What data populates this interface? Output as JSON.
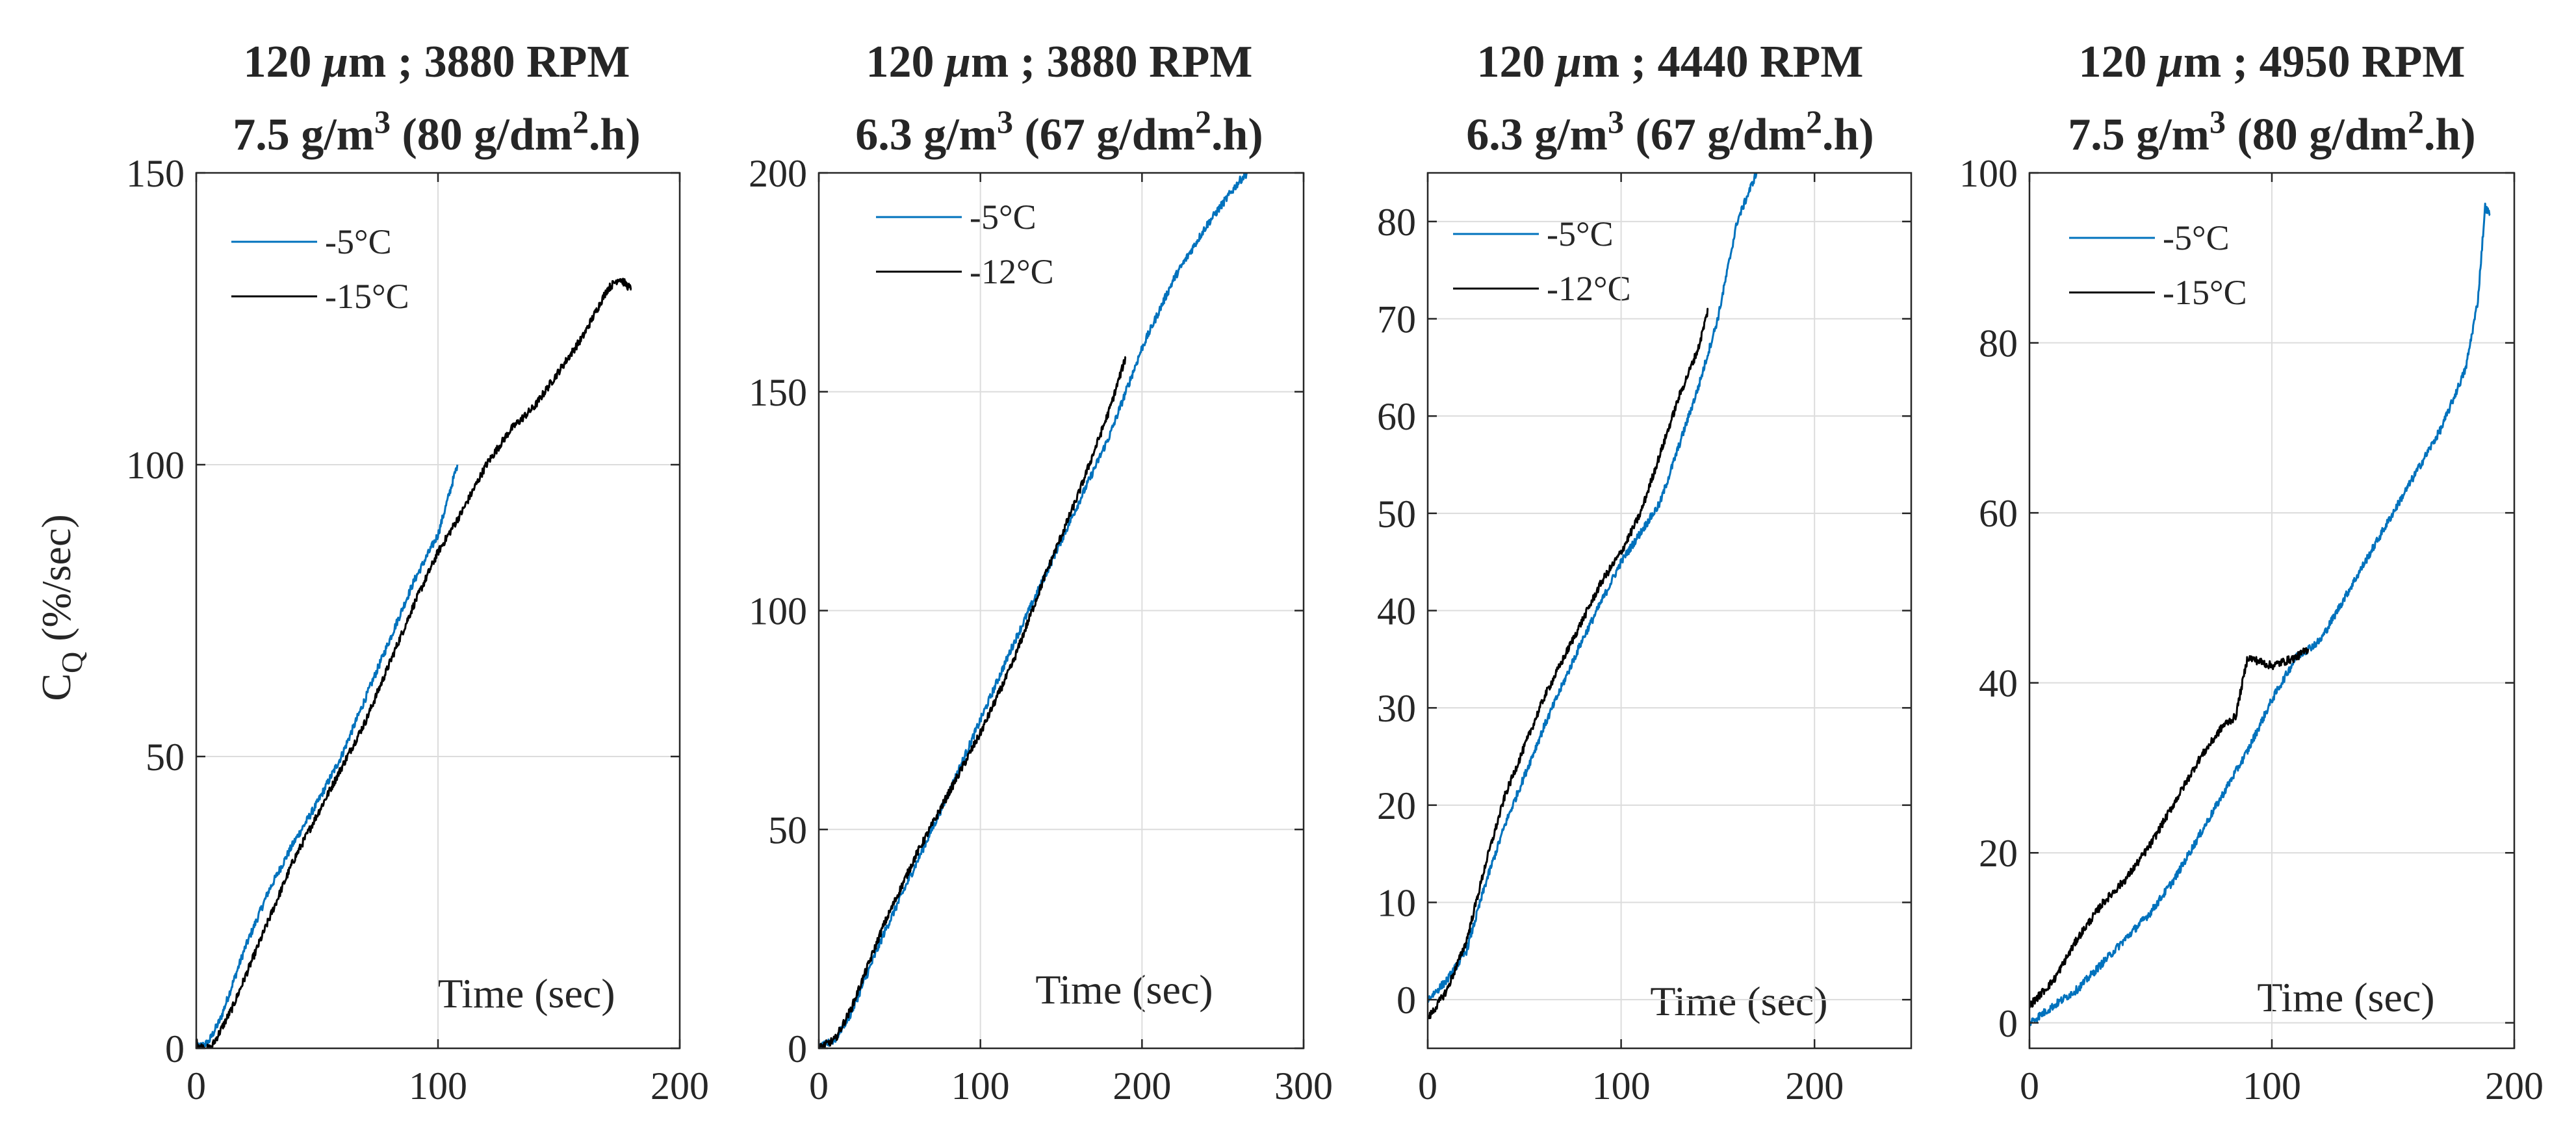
{
  "figure": {
    "ylabel": "C",
    "ylabel_sub": "Q",
    "ylabel_unit": " (%/sec)"
  },
  "colors": {
    "blue": "#0072BD",
    "black": "#000000",
    "grid": "#dcdcdc",
    "axis": "#262626"
  },
  "chart_data": [
    {
      "type": "line",
      "title_line1": {
        "pre": "120 ",
        "mu": "μ",
        "post": "m ; 3880 RPM"
      },
      "title_line2": {
        "a": "7.5 g/m",
        "a_sup": "3",
        "b": " (80 g/dm",
        "b_sup": "2",
        "c": ".h)"
      },
      "xlabel": "Time (sec)",
      "xlim": [
        0,
        200
      ],
      "ylim": [
        0,
        150
      ],
      "xticks": [
        0,
        100,
        200
      ],
      "yticks": [
        0,
        50,
        100,
        150
      ],
      "xtick_labels": [
        "0",
        "100",
        "200"
      ],
      "ytick_labels": [
        "0",
        "50",
        "100",
        "150"
      ],
      "legend": [
        "-5°C",
        "-15°C"
      ],
      "series": [
        {
          "name": "-5°C",
          "color": "#0072BD",
          "x": [
            0,
            5,
            10,
            20,
            30,
            40,
            50,
            60,
            70,
            80,
            90,
            100,
            108
          ],
          "y": [
            0,
            1,
            5,
            17,
            27,
            35,
            42,
            50,
            60,
            70,
            80,
            88,
            100
          ]
        },
        {
          "name": "-15°C",
          "color": "#000000",
          "x": [
            0,
            3,
            6,
            10,
            15,
            20,
            30,
            40,
            50,
            60,
            70,
            80,
            90,
            100,
            110,
            120,
            130,
            140,
            150,
            160,
            170,
            175,
            180
          ],
          "y": [
            1,
            0,
            0,
            3,
            7,
            12,
            22,
            32,
            40,
            48,
            56,
            66,
            76,
            85,
            92,
            100,
            106,
            110,
            116,
            122,
            130,
            132,
            130
          ]
        }
      ]
    },
    {
      "type": "line",
      "title_line1": {
        "pre": "120 ",
        "mu": "μ",
        "post": "m ; 3880 RPM"
      },
      "title_line2": {
        "a": "6.3 g/m",
        "a_sup": "3",
        "b": " (67 g/dm",
        "b_sup": "2",
        "c": ".h)"
      },
      "xlabel": "Time (sec)",
      "xlim": [
        0,
        300
      ],
      "ylim": [
        0,
        200
      ],
      "xticks": [
        0,
        100,
        200,
        300
      ],
      "yticks": [
        0,
        50,
        100,
        150,
        200
      ],
      "xtick_labels": [
        "0",
        "100",
        "200",
        "300"
      ],
      "ytick_labels": [
        "0",
        "50",
        "100",
        "150",
        "200"
      ],
      "legend": [
        "-5°C",
        "-12°C"
      ],
      "series": [
        {
          "name": "-5°C",
          "color": "#0072BD",
          "x": [
            0,
            10,
            20,
            40,
            60,
            80,
            100,
            120,
            140,
            160,
            180,
            200,
            220,
            240,
            260,
            265
          ],
          "y": [
            0,
            2,
            8,
            26,
            42,
            58,
            75,
            92,
            108,
            124,
            140,
            160,
            176,
            188,
            198,
            200
          ]
        },
        {
          "name": "-12°C",
          "color": "#000000",
          "x": [
            0,
            10,
            20,
            40,
            60,
            80,
            100,
            120,
            140,
            160,
            180,
            190
          ],
          "y": [
            0,
            2,
            9,
            28,
            44,
            58,
            72,
            88,
            108,
            126,
            146,
            158
          ]
        }
      ]
    },
    {
      "type": "line",
      "title_line1": {
        "pre": "120 ",
        "mu": "μ",
        "post": "m ; 4440 RPM"
      },
      "title_line2": {
        "a": "6.3 g/m",
        "a_sup": "3",
        "b": " (67 g/dm",
        "b_sup": "2",
        "c": ".h)"
      },
      "xlabel": "Time (sec)",
      "xlim": [
        0,
        250
      ],
      "ylim": [
        -5,
        85
      ],
      "xticks": [
        0,
        100,
        200
      ],
      "yticks": [
        0,
        10,
        20,
        30,
        40,
        50,
        60,
        70,
        80
      ],
      "xtick_labels": [
        "0",
        "100",
        "200"
      ],
      "ytick_labels": [
        "0",
        "10",
        "20",
        "30",
        "40",
        "50",
        "60",
        "70",
        "80"
      ],
      "legend": [
        "-5°C",
        "-12°C"
      ],
      "series": [
        {
          "name": "-5°C",
          "color": "#0072BD",
          "x": [
            0,
            10,
            20,
            30,
            40,
            60,
            80,
            100,
            120,
            130,
            140,
            150,
            160,
            170
          ],
          "y": [
            0,
            2,
            5,
            12,
            18,
            28,
            37,
            45,
            51,
            57,
            63,
            70,
            80,
            85
          ]
        },
        {
          "name": "-12°C",
          "color": "#000000",
          "x": [
            0,
            10,
            20,
            30,
            40,
            50,
            60,
            70,
            80,
            90,
            100,
            110,
            120,
            130,
            140,
            145
          ],
          "y": [
            -2,
            1,
            6,
            14,
            21,
            26,
            31,
            35,
            39,
            43,
            46,
            50,
            56,
            62,
            67,
            71
          ]
        }
      ]
    },
    {
      "type": "line",
      "title_line1": {
        "pre": "120 ",
        "mu": "μ",
        "post": "m ; 4950 RPM"
      },
      "title_line2": {
        "a": "7.5 g/m",
        "a_sup": "3",
        "b": " (80 g/dm",
        "b_sup": "2",
        "c": ".h)"
      },
      "xlabel": "Time (sec)",
      "xlim": [
        0,
        200
      ],
      "ylim": [
        -3,
        100
      ],
      "xticks": [
        0,
        100,
        200
      ],
      "yticks": [
        0,
        20,
        40,
        60,
        80,
        100
      ],
      "xtick_labels": [
        "0",
        "100",
        "200"
      ],
      "ytick_labels": [
        "0",
        "20",
        "40",
        "60",
        "80",
        "100"
      ],
      "legend": [
        "-5°C",
        "-15°C"
      ],
      "series": [
        {
          "name": "-5°C",
          "color": "#0072BD",
          "x": [
            0,
            10,
            20,
            30,
            40,
            50,
            60,
            70,
            80,
            90,
            100,
            110,
            120,
            130,
            140,
            150,
            160,
            170,
            180,
            185,
            188,
            190
          ],
          "y": [
            0,
            2,
            4,
            7,
            10,
            13,
            17,
            22,
            27,
            32,
            38,
            43,
            45,
            50,
            55,
            60,
            65,
            70,
            77,
            85,
            96,
            95
          ]
        },
        {
          "name": "-15°C",
          "color": "#000000",
          "x": [
            0,
            10,
            20,
            30,
            40,
            50,
            60,
            70,
            80,
            85,
            90,
            100,
            110,
            115
          ],
          "y": [
            2,
            5,
            10,
            14,
            17,
            21,
            26,
            31,
            35,
            36,
            43,
            42,
            43,
            44
          ]
        }
      ]
    }
  ]
}
